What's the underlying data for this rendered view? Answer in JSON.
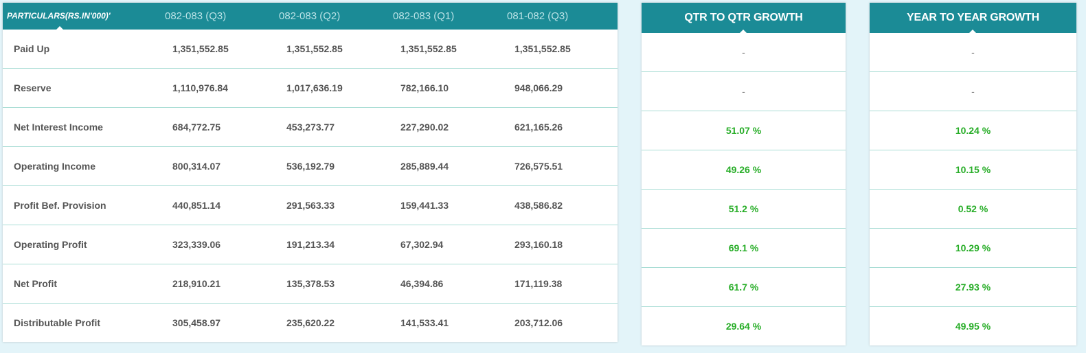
{
  "table": {
    "header": {
      "particulars": "PARTICULARS(RS.IN'000)'",
      "periods": [
        "082-083 (Q3)",
        "082-083 (Q2)",
        "082-083 (Q1)",
        "081-082 (Q3)"
      ]
    },
    "rows": [
      {
        "label": "Paid Up",
        "values": [
          "1,351,552.85",
          "1,351,552.85",
          "1,351,552.85",
          "1,351,552.85"
        ]
      },
      {
        "label": "Reserve",
        "values": [
          "1,110,976.84",
          "1,017,636.19",
          "782,166.10",
          "948,066.29"
        ]
      },
      {
        "label": "Net Interest Income",
        "values": [
          "684,772.75",
          "453,273.77",
          "227,290.02",
          "621,165.26"
        ]
      },
      {
        "label": "Operating Income",
        "values": [
          "800,314.07",
          "536,192.79",
          "285,889.44",
          "726,575.51"
        ]
      },
      {
        "label": "Profit Bef. Provision",
        "values": [
          "440,851.14",
          "291,563.33",
          "159,441.33",
          "438,586.82"
        ]
      },
      {
        "label": "Operating Profit",
        "values": [
          "323,339.06",
          "191,213.34",
          "67,302.94",
          "293,160.18"
        ]
      },
      {
        "label": "Net Profit",
        "values": [
          "218,910.21",
          "135,378.53",
          "46,394.86",
          "171,119.38"
        ]
      },
      {
        "label": "Distributable Profit",
        "values": [
          "305,458.97",
          "235,620.22",
          "141,533.41",
          "203,712.06"
        ]
      }
    ]
  },
  "qtr_growth": {
    "title": "QTR TO QTR GROWTH",
    "values": [
      "-",
      "-",
      "51.07 %",
      "49.26 %",
      "51.2 %",
      "69.1 %",
      "61.7 %",
      "29.64 %"
    ]
  },
  "yoy_growth": {
    "title": "YEAR TO YEAR GROWTH",
    "values": [
      "-",
      "-",
      "10.24 %",
      "10.15 %",
      "0.52 %",
      "10.29 %",
      "27.93 %",
      "49.95 %"
    ]
  },
  "colors": {
    "header_bg": "#1b8b96",
    "positive_growth": "#27ad27",
    "row_divider": "#a9ddd5",
    "page_bg": "#e3f4f9"
  }
}
